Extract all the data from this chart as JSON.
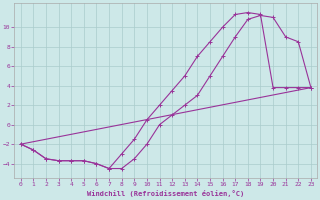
{
  "xlabel": "Windchill (Refroidissement éolien,°C)",
  "bg_color": "#cde8e8",
  "line_color": "#993399",
  "xlim": [
    -0.5,
    23.5
  ],
  "ylim": [
    -5.5,
    12.5
  ],
  "yticks": [
    -4,
    -2,
    0,
    2,
    4,
    6,
    8,
    10
  ],
  "xticks": [
    0,
    1,
    2,
    3,
    4,
    5,
    6,
    7,
    8,
    9,
    10,
    11,
    12,
    13,
    14,
    15,
    16,
    17,
    18,
    19,
    20,
    21,
    22,
    23
  ],
  "line1_x": [
    0,
    1,
    2,
    3,
    4,
    5,
    6,
    7,
    8,
    9,
    10,
    11,
    12,
    13,
    14,
    15,
    16,
    17,
    18,
    19,
    20,
    21,
    22,
    23
  ],
  "line1_y": [
    -2,
    -2.6,
    -3.5,
    -3.7,
    -3.7,
    -3.7,
    -4.0,
    -4.5,
    -4.5,
    -3.5,
    -2.0,
    0.0,
    1.0,
    2.0,
    3.0,
    5.0,
    7.0,
    9.0,
    10.8,
    11.2,
    11.0,
    9.0,
    8.5,
    3.8
  ],
  "line2_x": [
    0,
    1,
    2,
    3,
    4,
    5,
    6,
    7,
    8,
    9,
    10,
    11,
    12,
    13,
    14,
    15,
    16,
    17,
    18,
    19,
    20,
    21,
    22,
    23
  ],
  "line2_y": [
    -2,
    -2.6,
    -3.5,
    -3.7,
    -3.7,
    -3.7,
    -4.0,
    -4.5,
    -3.0,
    -1.5,
    0.5,
    2.0,
    3.5,
    5.0,
    7.0,
    8.5,
    10.0,
    11.3,
    11.5,
    11.3,
    3.8,
    3.8,
    3.8,
    3.8
  ],
  "line3_x": [
    0,
    23
  ],
  "line3_y": [
    -2,
    3.8
  ]
}
